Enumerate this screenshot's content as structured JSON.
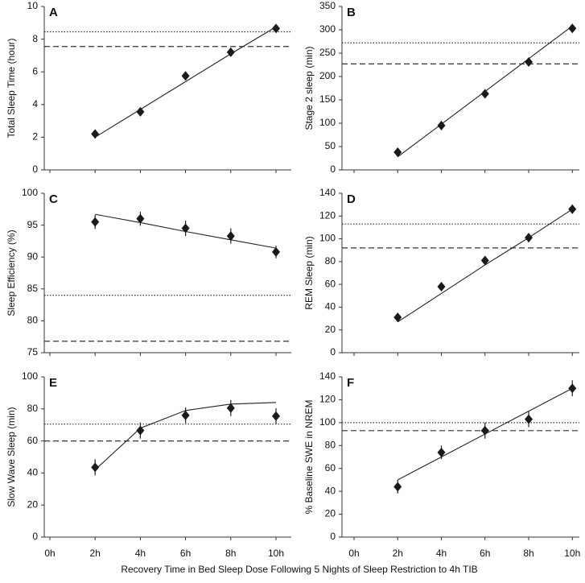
{
  "chart_data": [
    {
      "type": "scatter",
      "label": "A",
      "ylabel": "Total Sleep Time (hour)",
      "categories": [
        "0h",
        "2h",
        "4h",
        "6h",
        "8h",
        "10h"
      ],
      "ylim": [
        0,
        10
      ],
      "yticks": [
        0,
        2,
        4,
        6,
        8,
        10
      ],
      "color": "#1a1a1a",
      "values": [
        null,
        2.2,
        3.55,
        5.75,
        7.2,
        8.65
      ],
      "fit": [
        null,
        2.0,
        3.7,
        5.4,
        7.1,
        8.75
      ],
      "hlines": [
        {
          "value": 8.45,
          "style": "dotted"
        },
        {
          "value": 7.55,
          "style": "dashed"
        }
      ]
    },
    {
      "type": "scatter",
      "label": "B",
      "ylabel": "Stage 2 sleep (min)",
      "categories": [
        "0h",
        "2h",
        "4h",
        "6h",
        "8h",
        "10h"
      ],
      "ylim": [
        0,
        350
      ],
      "yticks": [
        0,
        50,
        100,
        150,
        200,
        250,
        300,
        350
      ],
      "color": "#1a1a1a",
      "values": [
        null,
        38,
        95,
        163,
        231,
        303
      ],
      "fit": [
        null,
        28,
        98,
        168,
        238,
        308
      ],
      "hlines": [
        {
          "value": 272,
          "style": "dotted"
        },
        {
          "value": 227,
          "style": "dashed"
        }
      ]
    },
    {
      "type": "scatter",
      "label": "C",
      "ylabel": "Sleep Efficiency (%)",
      "categories": [
        "0h",
        "2h",
        "4h",
        "6h",
        "8h",
        "10h"
      ],
      "ylim": [
        75,
        100
      ],
      "yticks": [
        75,
        80,
        85,
        90,
        95,
        100
      ],
      "color": "#1a1a1a",
      "values": [
        null,
        95.5,
        96,
        94.5,
        93.3,
        90.8
      ],
      "errors": [
        null,
        1.1,
        1.1,
        1.2,
        1.2,
        1
      ],
      "fit": [
        null,
        96.7,
        95.4,
        94.0,
        92.7,
        91.4
      ],
      "hlines": [
        {
          "value": 84,
          "style": "dotted"
        },
        {
          "value": 76.8,
          "style": "dashed"
        }
      ]
    },
    {
      "type": "scatter",
      "label": "D",
      "ylabel": "REM Sleep (min)",
      "categories": [
        "0h",
        "2h",
        "4h",
        "6h",
        "8h",
        "10h"
      ],
      "ylim": [
        0,
        140
      ],
      "yticks": [
        0,
        20,
        40,
        60,
        80,
        100,
        120,
        140
      ],
      "color": "#1a1a1a",
      "values": [
        null,
        31,
        58,
        81,
        101,
        126
      ],
      "errors": [
        null,
        3,
        3,
        4,
        4,
        4
      ],
      "fit": [
        null,
        27,
        52,
        77,
        101,
        126
      ],
      "hlines": [
        {
          "value": 113,
          "style": "dotted"
        },
        {
          "value": 92,
          "style": "dashed"
        }
      ]
    },
    {
      "type": "scatter",
      "label": "E",
      "ylabel": "Slow Wave Sleep (min)",
      "categories": [
        "0h",
        "2h",
        "4h",
        "6h",
        "8h",
        "10h"
      ],
      "ylim": [
        0,
        100
      ],
      "yticks": [
        0,
        20,
        40,
        60,
        80,
        100
      ],
      "color": "#1a1a1a",
      "values": [
        null,
        43.5,
        66.5,
        76,
        80.5,
        75.5
      ],
      "errors": [
        null,
        5,
        5,
        5,
        5,
        5
      ],
      "fit": [
        null,
        42,
        68,
        79,
        83,
        84
      ],
      "hlines": [
        {
          "value": 70.5,
          "style": "dotted"
        },
        {
          "value": 60,
          "style": "dashed"
        }
      ]
    },
    {
      "type": "scatter",
      "label": "F",
      "ylabel": "% Baseline SWE in NREM",
      "categories": [
        "0h",
        "2h",
        "4h",
        "6h",
        "8h",
        "10h"
      ],
      "ylim": [
        0,
        140
      ],
      "yticks": [
        0,
        20,
        40,
        60,
        80,
        100,
        120,
        140
      ],
      "color": "#1a1a1a",
      "values": [
        null,
        44,
        74,
        93,
        103,
        130
      ],
      "errors": [
        null,
        6,
        6,
        7,
        7,
        7
      ],
      "fit": [
        null,
        50,
        70,
        90,
        110,
        130
      ],
      "hlines": [
        {
          "value": 100,
          "style": "dotted"
        },
        {
          "value": 93,
          "style": "dashed"
        }
      ]
    }
  ],
  "xlabel": "Recovery Time in Bed Sleep Dose Following 5 Nights of Sleep Restriction to 4h TIB"
}
